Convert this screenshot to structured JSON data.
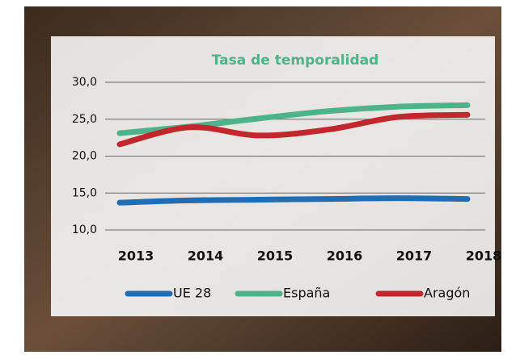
{
  "chart_data": {
    "type": "line",
    "title": "Tasa de temporalidad",
    "categories": [
      "2013",
      "2014",
      "2015",
      "2016",
      "2017",
      "2018"
    ],
    "series": [
      {
        "name": "UE 28",
        "color": "#1f6db5",
        "values": [
          13.7,
          14.0,
          14.1,
          14.2,
          14.3,
          14.2
        ]
      },
      {
        "name": "España",
        "color": "#4cb38a",
        "values": [
          23.1,
          24.0,
          25.1,
          26.1,
          26.7,
          26.9
        ]
      },
      {
        "name": "Aragón",
        "color": "#c1272d",
        "values": [
          21.6,
          23.9,
          22.8,
          23.6,
          25.3,
          25.6
        ]
      }
    ],
    "ylim": [
      10,
      30
    ],
    "yticks": [
      {
        "value": 10,
        "label": "10,0"
      },
      {
        "value": 15,
        "label": "15,0"
      },
      {
        "value": 20,
        "label": "20,0"
      },
      {
        "value": 25,
        "label": "25,0"
      },
      {
        "value": 30,
        "label": "30,0"
      }
    ],
    "grid": true
  }
}
